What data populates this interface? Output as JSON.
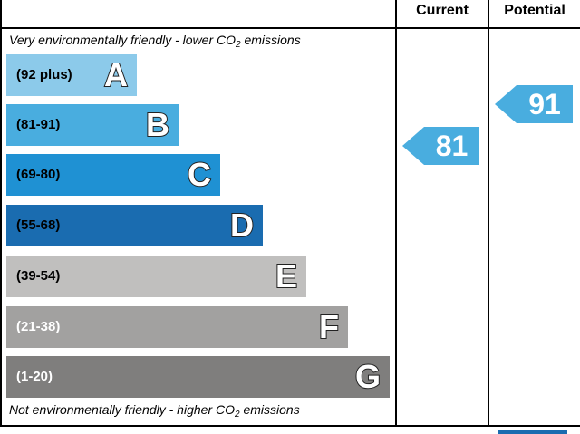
{
  "chart_data": {
    "type": "bar",
    "headers": {
      "current": "Current",
      "potential": "Potential"
    },
    "caption_top": {
      "text": "Very environmentally friendly - lower CO",
      "sub": "2",
      "suffix": " emissions"
    },
    "caption_bottom": {
      "text": "Not environmentally friendly - higher CO",
      "sub": "2",
      "suffix": " emissions"
    },
    "bands": [
      {
        "letter": "A",
        "range": "(92 plus)",
        "color": "#8ccaea",
        "text_color": "#000000"
      },
      {
        "letter": "B",
        "range": "(81-91)",
        "color": "#49addf",
        "text_color": "#000000"
      },
      {
        "letter": "C",
        "range": "(69-80)",
        "color": "#1f91d3",
        "text_color": "#000000"
      },
      {
        "letter": "D",
        "range": "(55-68)",
        "color": "#1a6cb0",
        "text_color": "#000000"
      },
      {
        "letter": "E",
        "range": "(39-54)",
        "color": "#c0bfbe",
        "text_color": "#000000"
      },
      {
        "letter": "F",
        "range": "(21-38)",
        "color": "#a2a1a0",
        "text_color": "#ffffff"
      },
      {
        "letter": "G",
        "range": "(1-20)",
        "color": "#7f7e7d",
        "text_color": "#ffffff"
      }
    ],
    "current": {
      "value": "81",
      "band": "B",
      "color": "#49addf"
    },
    "potential": {
      "value": "91",
      "band": "B",
      "color": "#49addf"
    }
  }
}
